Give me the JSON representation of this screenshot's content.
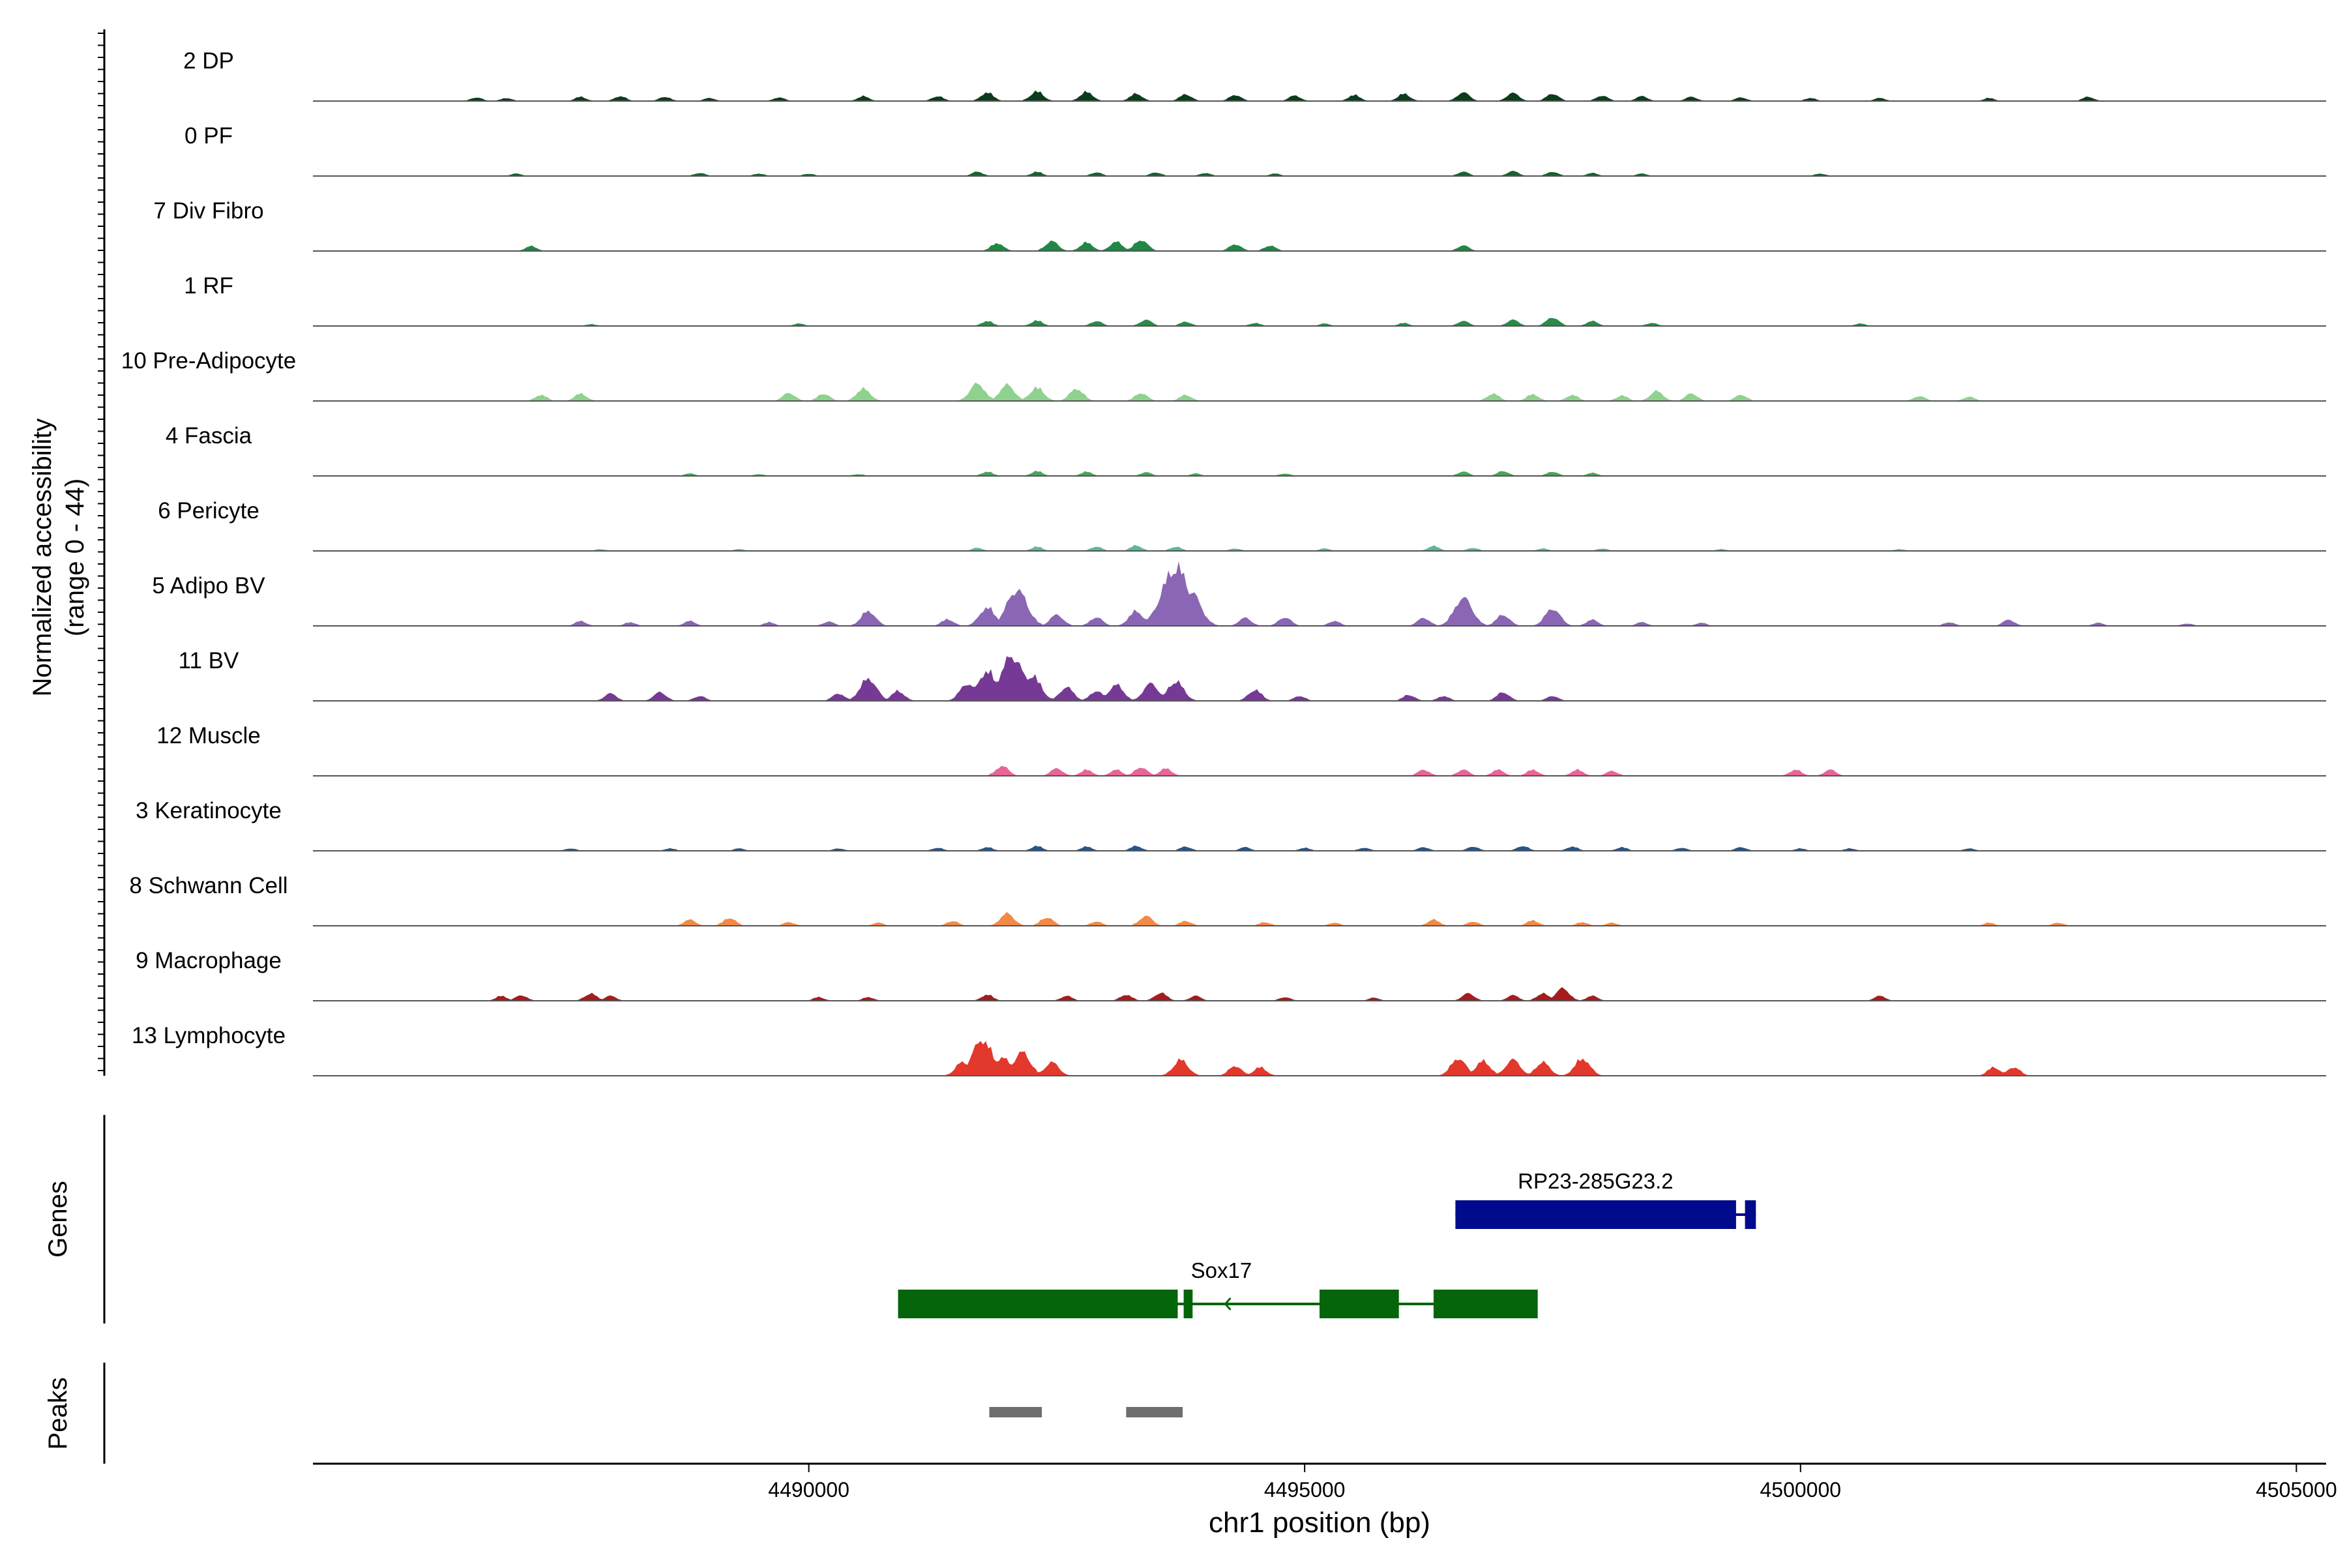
{
  "chart_data": {
    "type": "area",
    "subtype": "genome-coverage-track",
    "title": "",
    "y_axis": {
      "label_line1": "Normalized accessibility",
      "label_line2": "(range 0 - 44)",
      "range": [
        0,
        44
      ]
    },
    "x_axis": {
      "label": "chr1 position (bp)",
      "range": [
        4485000,
        4505300
      ],
      "ticks": [
        4490000,
        4495000,
        4500000,
        4505000
      ],
      "tick_labels": [
        "4490000",
        "4495000",
        "4500000",
        "4505000"
      ]
    },
    "grid": false,
    "tracks": [
      {
        "name": "2 DP",
        "color": "#0b3d1c",
        "peaks": [
          [
            4486650,
            0.06
          ],
          [
            4486950,
            0.05
          ],
          [
            4487700,
            0.07
          ],
          [
            4488100,
            0.08
          ],
          [
            4488550,
            0.07
          ],
          [
            4489000,
            0.05
          ],
          [
            4489700,
            0.06
          ],
          [
            4490550,
            0.08
          ],
          [
            4491300,
            0.08
          ],
          [
            4491800,
            0.14
          ],
          [
            4492300,
            0.16
          ],
          [
            4492800,
            0.15
          ],
          [
            4493300,
            0.12
          ],
          [
            4493800,
            0.11
          ],
          [
            4494300,
            0.1
          ],
          [
            4494900,
            0.09
          ],
          [
            4495500,
            0.1
          ],
          [
            4496000,
            0.12
          ],
          [
            4496600,
            0.14
          ],
          [
            4497100,
            0.13
          ],
          [
            4497500,
            0.12
          ],
          [
            4498000,
            0.09
          ],
          [
            4498400,
            0.08
          ],
          [
            4498900,
            0.07
          ],
          [
            4499400,
            0.06
          ],
          [
            4500100,
            0.05
          ],
          [
            4500800,
            0.05
          ],
          [
            4501900,
            0.05
          ],
          [
            4502900,
            0.07
          ]
        ]
      },
      {
        "name": "0 PF",
        "color": "#1d5e34",
        "peaks": [
          [
            4487050,
            0.04
          ],
          [
            4488900,
            0.05
          ],
          [
            4489500,
            0.04
          ],
          [
            4490000,
            0.04
          ],
          [
            4491700,
            0.07
          ],
          [
            4492300,
            0.07
          ],
          [
            4492900,
            0.06
          ],
          [
            4493500,
            0.06
          ],
          [
            4494000,
            0.05
          ],
          [
            4494700,
            0.04
          ],
          [
            4496600,
            0.07
          ],
          [
            4497100,
            0.08
          ],
          [
            4497500,
            0.07
          ],
          [
            4497900,
            0.05
          ],
          [
            4498400,
            0.04
          ],
          [
            4500200,
            0.04
          ]
        ]
      },
      {
        "name": "7 Div Fibro",
        "color": "#1f8844",
        "peaks": [
          [
            4487200,
            0.08
          ],
          [
            4491900,
            0.13
          ],
          [
            4492450,
            0.16
          ],
          [
            4492800,
            0.14
          ],
          [
            4493100,
            0.15
          ],
          [
            4493350,
            0.18
          ],
          [
            4494300,
            0.11
          ],
          [
            4494650,
            0.09
          ],
          [
            4496600,
            0.09
          ]
        ]
      },
      {
        "name": "1 RF",
        "color": "#2c8a4a",
        "peaks": [
          [
            4487800,
            0.03
          ],
          [
            4489900,
            0.04
          ],
          [
            4491800,
            0.08
          ],
          [
            4492300,
            0.09
          ],
          [
            4492900,
            0.08
          ],
          [
            4493400,
            0.1
          ],
          [
            4493800,
            0.07
          ],
          [
            4494500,
            0.05
          ],
          [
            4495200,
            0.04
          ],
          [
            4496000,
            0.05
          ],
          [
            4496600,
            0.08
          ],
          [
            4497100,
            0.1
          ],
          [
            4497500,
            0.14
          ],
          [
            4497900,
            0.08
          ],
          [
            4498500,
            0.05
          ],
          [
            4500600,
            0.04
          ]
        ]
      },
      {
        "name": "10 Pre-Adipocyte",
        "color": "#8fd18f",
        "peaks": [
          [
            4487300,
            0.1
          ],
          [
            4487700,
            0.12
          ],
          [
            4489800,
            0.13
          ],
          [
            4490150,
            0.12
          ],
          [
            4490550,
            0.2
          ],
          [
            4491700,
            0.28
          ],
          [
            4492000,
            0.26
          ],
          [
            4492300,
            0.22
          ],
          [
            4492700,
            0.2
          ],
          [
            4493350,
            0.13
          ],
          [
            4493800,
            0.1
          ],
          [
            4496900,
            0.12
          ],
          [
            4497300,
            0.11
          ],
          [
            4497700,
            0.1
          ],
          [
            4498200,
            0.09
          ],
          [
            4498550,
            0.16
          ],
          [
            4498900,
            0.12
          ],
          [
            4499400,
            0.1
          ],
          [
            4501200,
            0.08
          ],
          [
            4501700,
            0.07
          ]
        ]
      },
      {
        "name": "4 Fascia",
        "color": "#4ea35b",
        "peaks": [
          [
            4488800,
            0.04
          ],
          [
            4489500,
            0.03
          ],
          [
            4490500,
            0.03
          ],
          [
            4491800,
            0.07
          ],
          [
            4492300,
            0.08
          ],
          [
            4492800,
            0.07
          ],
          [
            4493400,
            0.06
          ],
          [
            4493900,
            0.04
          ],
          [
            4494800,
            0.04
          ],
          [
            4496600,
            0.07
          ],
          [
            4497000,
            0.08
          ],
          [
            4497500,
            0.07
          ],
          [
            4497900,
            0.05
          ]
        ]
      },
      {
        "name": "6 Pericyte",
        "color": "#5cb89c",
        "peaks": [
          [
            4487900,
            0.03
          ],
          [
            4489300,
            0.03
          ],
          [
            4491700,
            0.05
          ],
          [
            4492300,
            0.07
          ],
          [
            4492900,
            0.07
          ],
          [
            4493300,
            0.09
          ],
          [
            4493700,
            0.07
          ],
          [
            4494300,
            0.04
          ],
          [
            4495200,
            0.04
          ],
          [
            4496300,
            0.08
          ],
          [
            4496700,
            0.05
          ],
          [
            4497400,
            0.04
          ],
          [
            4498000,
            0.04
          ],
          [
            4499200,
            0.03
          ],
          [
            4501000,
            0.03
          ]
        ]
      },
      {
        "name": "5 Adipo BV",
        "color": "#8b66b4",
        "peaks": [
          [
            4487700,
            0.08
          ],
          [
            4488200,
            0.06
          ],
          [
            4488800,
            0.08
          ],
          [
            4489600,
            0.06
          ],
          [
            4490200,
            0.07
          ],
          [
            4490600,
            0.24
          ],
          [
            4491400,
            0.11
          ],
          [
            4491800,
            0.3
          ],
          [
            4492100,
            0.58
          ],
          [
            4492500,
            0.18
          ],
          [
            4492900,
            0.14
          ],
          [
            4493300,
            0.24
          ],
          [
            4493600,
            0.52
          ],
          [
            4493700,
            0.95
          ],
          [
            4493850,
            0.55
          ],
          [
            4494400,
            0.13
          ],
          [
            4494800,
            0.14
          ],
          [
            4495300,
            0.08
          ],
          [
            4496200,
            0.13
          ],
          [
            4496600,
            0.45
          ],
          [
            4497000,
            0.18
          ],
          [
            4497500,
            0.28
          ],
          [
            4497900,
            0.1
          ],
          [
            4498400,
            0.06
          ],
          [
            4499000,
            0.05
          ],
          [
            4501500,
            0.06
          ],
          [
            4502100,
            0.1
          ],
          [
            4503000,
            0.05
          ],
          [
            4503900,
            0.04
          ]
        ]
      },
      {
        "name": "11 BV",
        "color": "#773996",
        "peaks": [
          [
            4488000,
            0.12
          ],
          [
            4488500,
            0.14
          ],
          [
            4488900,
            0.08
          ],
          [
            4490300,
            0.12
          ],
          [
            4490600,
            0.36
          ],
          [
            4490900,
            0.16
          ],
          [
            4491600,
            0.28
          ],
          [
            4491800,
            0.48
          ],
          [
            4492050,
            0.72
          ],
          [
            4492250,
            0.42
          ],
          [
            4492600,
            0.22
          ],
          [
            4492900,
            0.16
          ],
          [
            4493100,
            0.26
          ],
          [
            4493450,
            0.28
          ],
          [
            4493700,
            0.32
          ],
          [
            4494500,
            0.18
          ],
          [
            4494950,
            0.08
          ],
          [
            4496050,
            0.1
          ],
          [
            4496400,
            0.08
          ],
          [
            4497000,
            0.14
          ],
          [
            4497500,
            0.08
          ]
        ]
      },
      {
        "name": "12 Muscle",
        "color": "#e8649a",
        "peaks": [
          [
            4491950,
            0.16
          ],
          [
            4492500,
            0.12
          ],
          [
            4492800,
            0.1
          ],
          [
            4493100,
            0.1
          ],
          [
            4493350,
            0.14
          ],
          [
            4493600,
            0.12
          ],
          [
            4496200,
            0.1
          ],
          [
            4496600,
            0.1
          ],
          [
            4496950,
            0.1
          ],
          [
            4497300,
            0.1
          ],
          [
            4497750,
            0.1
          ],
          [
            4498100,
            0.08
          ],
          [
            4499950,
            0.1
          ],
          [
            4500300,
            0.1
          ]
        ]
      },
      {
        "name": "3 Keratinocyte",
        "color": "#1f5793",
        "peaks": [
          [
            4487600,
            0.04
          ],
          [
            4488600,
            0.04
          ],
          [
            4489300,
            0.04
          ],
          [
            4490300,
            0.04
          ],
          [
            4491300,
            0.05
          ],
          [
            4491800,
            0.06
          ],
          [
            4492300,
            0.08
          ],
          [
            4492800,
            0.07
          ],
          [
            4493300,
            0.08
          ],
          [
            4493800,
            0.07
          ],
          [
            4494400,
            0.06
          ],
          [
            4495000,
            0.05
          ],
          [
            4495600,
            0.05
          ],
          [
            4496200,
            0.06
          ],
          [
            4496700,
            0.07
          ],
          [
            4497200,
            0.08
          ],
          [
            4497700,
            0.07
          ],
          [
            4498200,
            0.06
          ],
          [
            4498800,
            0.05
          ],
          [
            4499400,
            0.06
          ],
          [
            4500000,
            0.04
          ],
          [
            4500500,
            0.04
          ],
          [
            4501700,
            0.04
          ]
        ]
      },
      {
        "name": "8 Schwann Cell",
        "color": "#f28a47",
        "peaks": [
          [
            4488800,
            0.1
          ],
          [
            4489200,
            0.13
          ],
          [
            4489800,
            0.06
          ],
          [
            4490700,
            0.05
          ],
          [
            4491450,
            0.08
          ],
          [
            4492000,
            0.2
          ],
          [
            4492400,
            0.14
          ],
          [
            4492900,
            0.07
          ],
          [
            4493400,
            0.16
          ],
          [
            4493800,
            0.08
          ],
          [
            4494600,
            0.06
          ],
          [
            4495300,
            0.05
          ],
          [
            4496300,
            0.1
          ],
          [
            4496700,
            0.07
          ],
          [
            4497300,
            0.09
          ],
          [
            4497800,
            0.06
          ],
          [
            4498100,
            0.05
          ],
          [
            4501900,
            0.05
          ],
          [
            4502600,
            0.05
          ]
        ]
      },
      {
        "name": "9 Macrophage",
        "color": "#a61c1c",
        "peaks": [
          [
            4486900,
            0.08
          ],
          [
            4487100,
            0.09
          ],
          [
            4487800,
            0.12
          ],
          [
            4488000,
            0.08
          ],
          [
            4490100,
            0.06
          ],
          [
            4490600,
            0.06
          ],
          [
            4491800,
            0.1
          ],
          [
            4492600,
            0.08
          ],
          [
            4493200,
            0.1
          ],
          [
            4493550,
            0.13
          ],
          [
            4493900,
            0.08
          ],
          [
            4494800,
            0.06
          ],
          [
            4495700,
            0.05
          ],
          [
            4496650,
            0.12
          ],
          [
            4497100,
            0.09
          ],
          [
            4497400,
            0.12
          ],
          [
            4497600,
            0.2
          ],
          [
            4497900,
            0.08
          ],
          [
            4500800,
            0.08
          ]
        ]
      },
      {
        "name": "13 Lymphocyte",
        "color": "#e3382c",
        "peaks": [
          [
            4491550,
            0.22
          ],
          [
            4491750,
            0.58
          ],
          [
            4491950,
            0.3
          ],
          [
            4492150,
            0.38
          ],
          [
            4492450,
            0.22
          ],
          [
            4493750,
            0.26
          ],
          [
            4494300,
            0.16
          ],
          [
            4494550,
            0.14
          ],
          [
            4496550,
            0.28
          ],
          [
            4496800,
            0.24
          ],
          [
            4497100,
            0.26
          ],
          [
            4497400,
            0.22
          ],
          [
            4497800,
            0.28
          ],
          [
            4501950,
            0.14
          ],
          [
            4502150,
            0.14
          ]
        ]
      }
    ],
    "genes_track": {
      "label": "Genes",
      "genes": [
        {
          "name": "RP23-285G23.2",
          "color": "#000a8c",
          "strand": "-",
          "start": 4496520,
          "end": 4499550,
          "exons": [
            [
              4496520,
              4499350
            ],
            [
              4499440,
              4499550
            ]
          ]
        },
        {
          "name": "Sox17",
          "color": "#05650a",
          "strand": "-",
          "start": 4490900,
          "end": 4497350,
          "exons": [
            [
              4490900,
              4493720
            ],
            [
              4493780,
              4493870
            ],
            [
              4495150,
              4495950
            ],
            [
              4496300,
              4497350
            ]
          ]
        }
      ]
    },
    "peaks_track": {
      "label": "Peaks",
      "color": "#6e6e6e",
      "regions": [
        [
          4491820,
          4492350
        ],
        [
          4493200,
          4493770
        ]
      ]
    }
  }
}
